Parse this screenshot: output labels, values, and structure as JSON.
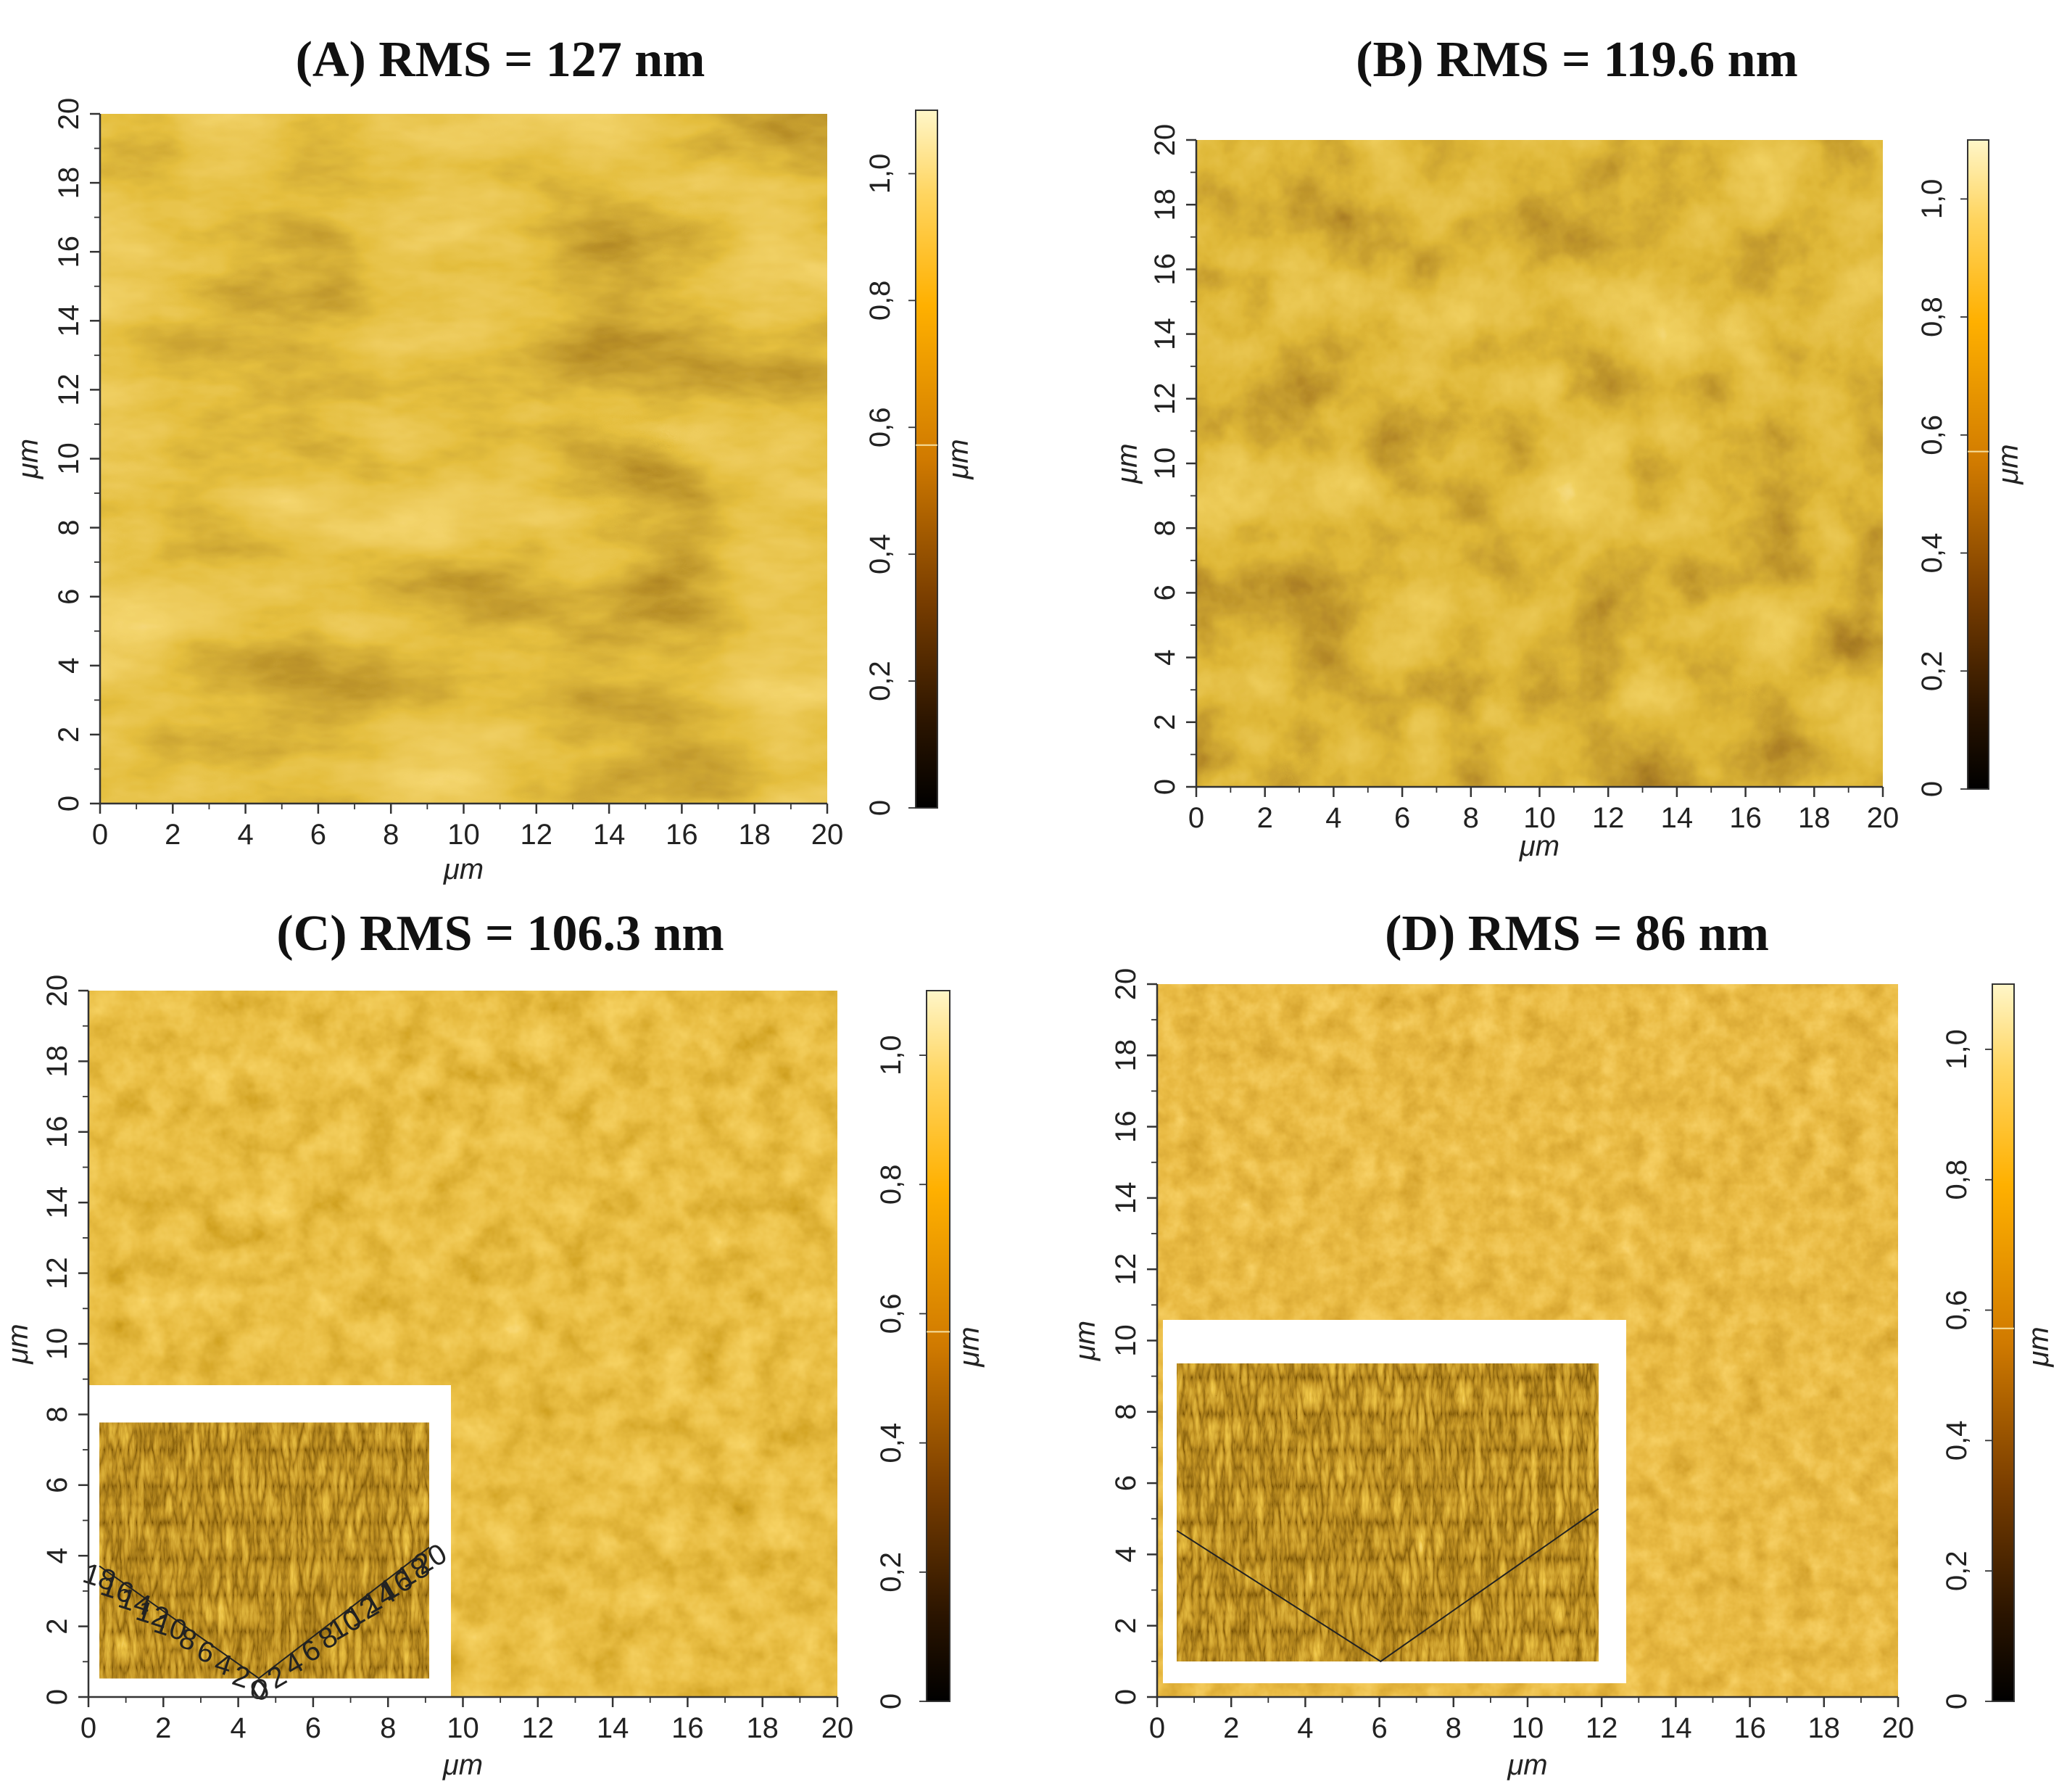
{
  "figure": {
    "panels": [
      {
        "id": "A",
        "title_letter": "A",
        "title_text": "RMS = 127 nm",
        "rms_nm": 127,
        "x_ticks": [
          "0",
          "2",
          "4",
          "6",
          "8",
          "10",
          "12",
          "14",
          "16",
          "18",
          "20"
        ],
        "y_ticks": [
          "0",
          "2",
          "4",
          "6",
          "8",
          "10",
          "12",
          "14",
          "16",
          "18",
          "20"
        ],
        "x_label": "μm",
        "y_label": "μm",
        "colorbar_ticks": [
          "0",
          "0,2",
          "0,4",
          "0,6",
          "0,8",
          "1,0"
        ],
        "colorbar_label": "μm",
        "has_inset": false,
        "inset_ticks_left": [],
        "inset_ticks_right": []
      },
      {
        "id": "B",
        "title_letter": "B",
        "title_text": "RMS = 119.6 nm",
        "rms_nm": 119.6,
        "x_ticks": [
          "0",
          "2",
          "4",
          "6",
          "8",
          "10",
          "12",
          "14",
          "16",
          "18",
          "20"
        ],
        "y_ticks": [
          "0",
          "2",
          "4",
          "6",
          "8",
          "10",
          "12",
          "14",
          "16",
          "18",
          "20"
        ],
        "x_label": "μm",
        "y_label": "μm",
        "colorbar_ticks": [
          "0",
          "0,2",
          "0,4",
          "0,6",
          "0,8",
          "1,0"
        ],
        "colorbar_label": "μm",
        "has_inset": false,
        "inset_ticks_left": [],
        "inset_ticks_right": []
      },
      {
        "id": "C",
        "title_letter": "C",
        "title_text": "RMS = 106.3 nm",
        "rms_nm": 106.3,
        "x_ticks": [
          "0",
          "2",
          "4",
          "6",
          "8",
          "10",
          "12",
          "14",
          "16",
          "18",
          "20"
        ],
        "y_ticks": [
          "0",
          "2",
          "4",
          "6",
          "8",
          "10",
          "12",
          "14",
          "16",
          "18",
          "20"
        ],
        "x_label": "μm",
        "y_label": "μm",
        "colorbar_ticks": [
          "0",
          "0,2",
          "0,4",
          "0,6",
          "0,8",
          "1,0"
        ],
        "colorbar_label": "μm",
        "has_inset": true,
        "inset_ticks_left": [
          "18",
          "16",
          "14",
          "12",
          "10",
          "8",
          "6",
          "4",
          "2",
          "0"
        ],
        "inset_ticks_right": [
          "0",
          "2",
          "4",
          "6",
          "8",
          "10",
          "12",
          "14",
          "16",
          "18",
          "20"
        ]
      },
      {
        "id": "D",
        "title_letter": "D",
        "title_text": "RMS = 86 nm",
        "rms_nm": 86,
        "x_ticks": [
          "0",
          "2",
          "4",
          "6",
          "8",
          "10",
          "12",
          "14",
          "16",
          "18",
          "20"
        ],
        "y_ticks": [
          "0",
          "2",
          "4",
          "6",
          "8",
          "10",
          "12",
          "14",
          "16",
          "18",
          "20"
        ],
        "x_label": "μm",
        "y_label": "μm",
        "colorbar_ticks": [
          "0",
          "0,2",
          "0,4",
          "0,6",
          "0,8",
          "1,0"
        ],
        "colorbar_label": "μm",
        "has_inset": true,
        "inset_ticks_left": [],
        "inset_ticks_right": []
      }
    ]
  },
  "chart_data": [
    {
      "type": "heatmap",
      "title": "(A) RMS = 127 nm",
      "xlabel": "μm",
      "ylabel": "μm",
      "xlim": [
        0,
        20
      ],
      "ylim": [
        0,
        20
      ],
      "colorbar_label": "μm",
      "colorbar_range": [
        0,
        1.1
      ],
      "rms_nm": 127
    },
    {
      "type": "heatmap",
      "title": "(B) RMS = 119.6 nm",
      "xlabel": "μm",
      "ylabel": "μm",
      "xlim": [
        0,
        20
      ],
      "ylim": [
        0,
        20
      ],
      "colorbar_label": "μm",
      "colorbar_range": [
        0,
        1.1
      ],
      "rms_nm": 119.6
    },
    {
      "type": "heatmap",
      "title": "(C) RMS = 106.3 nm",
      "xlabel": "μm",
      "ylabel": "μm",
      "xlim": [
        0,
        20
      ],
      "ylim": [
        0,
        20
      ],
      "colorbar_label": "μm",
      "colorbar_range": [
        0,
        1.1
      ],
      "rms_nm": 106.3
    },
    {
      "type": "heatmap",
      "title": "(D) RMS = 86 nm",
      "xlabel": "μm",
      "ylabel": "μm",
      "xlim": [
        0,
        20
      ],
      "ylim": [
        0,
        20
      ],
      "colorbar_label": "μm",
      "colorbar_range": [
        0,
        1.1
      ],
      "rms_nm": 86
    }
  ]
}
